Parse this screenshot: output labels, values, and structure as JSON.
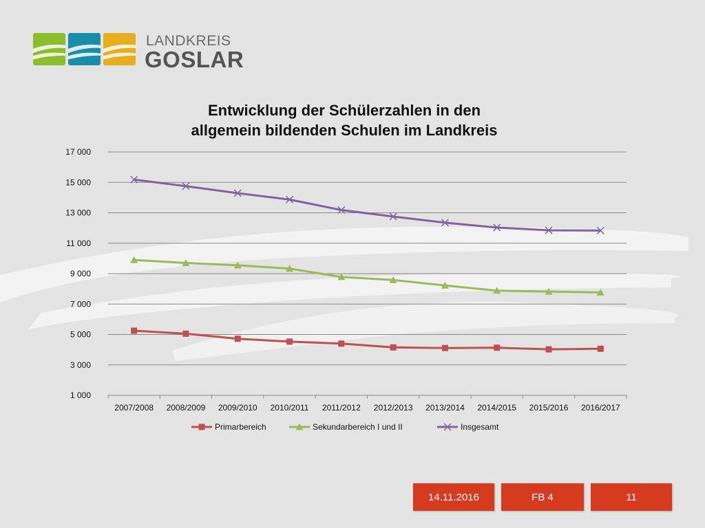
{
  "logo": {
    "line1": "LANDKREIS",
    "line2": "GOSLAR",
    "tile_colors": [
      "#8bbe2a",
      "#1a8ea8",
      "#e8ae1d"
    ]
  },
  "chart_data": {
    "type": "line",
    "title_lines": [
      "Entwicklung der Schülerzahlen in den",
      "allgemein bildenden Schulen im Landkreis"
    ],
    "xlabel": "",
    "ylabel": "",
    "categories": [
      "2007/2008",
      "2008/2009",
      "2009/2010",
      "2010/2011",
      "2011/2012",
      "2012/2013",
      "2013/2014",
      "2014/2015",
      "2015/2016",
      "2016/2017"
    ],
    "ylim": [
      1000,
      17000
    ],
    "yticks": [
      1000,
      3000,
      5000,
      7000,
      9000,
      11000,
      13000,
      15000,
      17000
    ],
    "ytick_labels": [
      "1 000",
      "3 000",
      "5 000",
      "7 000",
      "9 000",
      "11 000",
      "13 000",
      "15 000",
      "17 000"
    ],
    "grid": true,
    "legend_position": "bottom",
    "series": [
      {
        "name": "Primarbereich",
        "color": "#c0504d",
        "marker": "square",
        "values": [
          5250,
          5050,
          4720,
          4530,
          4400,
          4150,
          4110,
          4130,
          4020,
          4060
        ]
      },
      {
        "name": "Sekundarbereich I und II",
        "color": "#9bbb59",
        "marker": "triangle",
        "values": [
          9900,
          9700,
          9550,
          9330,
          8780,
          8580,
          8220,
          7880,
          7820,
          7760
        ]
      },
      {
        "name": "Insgesamt",
        "color": "#8064a2",
        "marker": "x",
        "values": [
          15180,
          14750,
          14290,
          13870,
          13180,
          12750,
          12350,
          12030,
          11850,
          11830
        ]
      }
    ]
  },
  "footer": {
    "date": "14.11.2016",
    "department": "FB 4",
    "page": "11"
  }
}
